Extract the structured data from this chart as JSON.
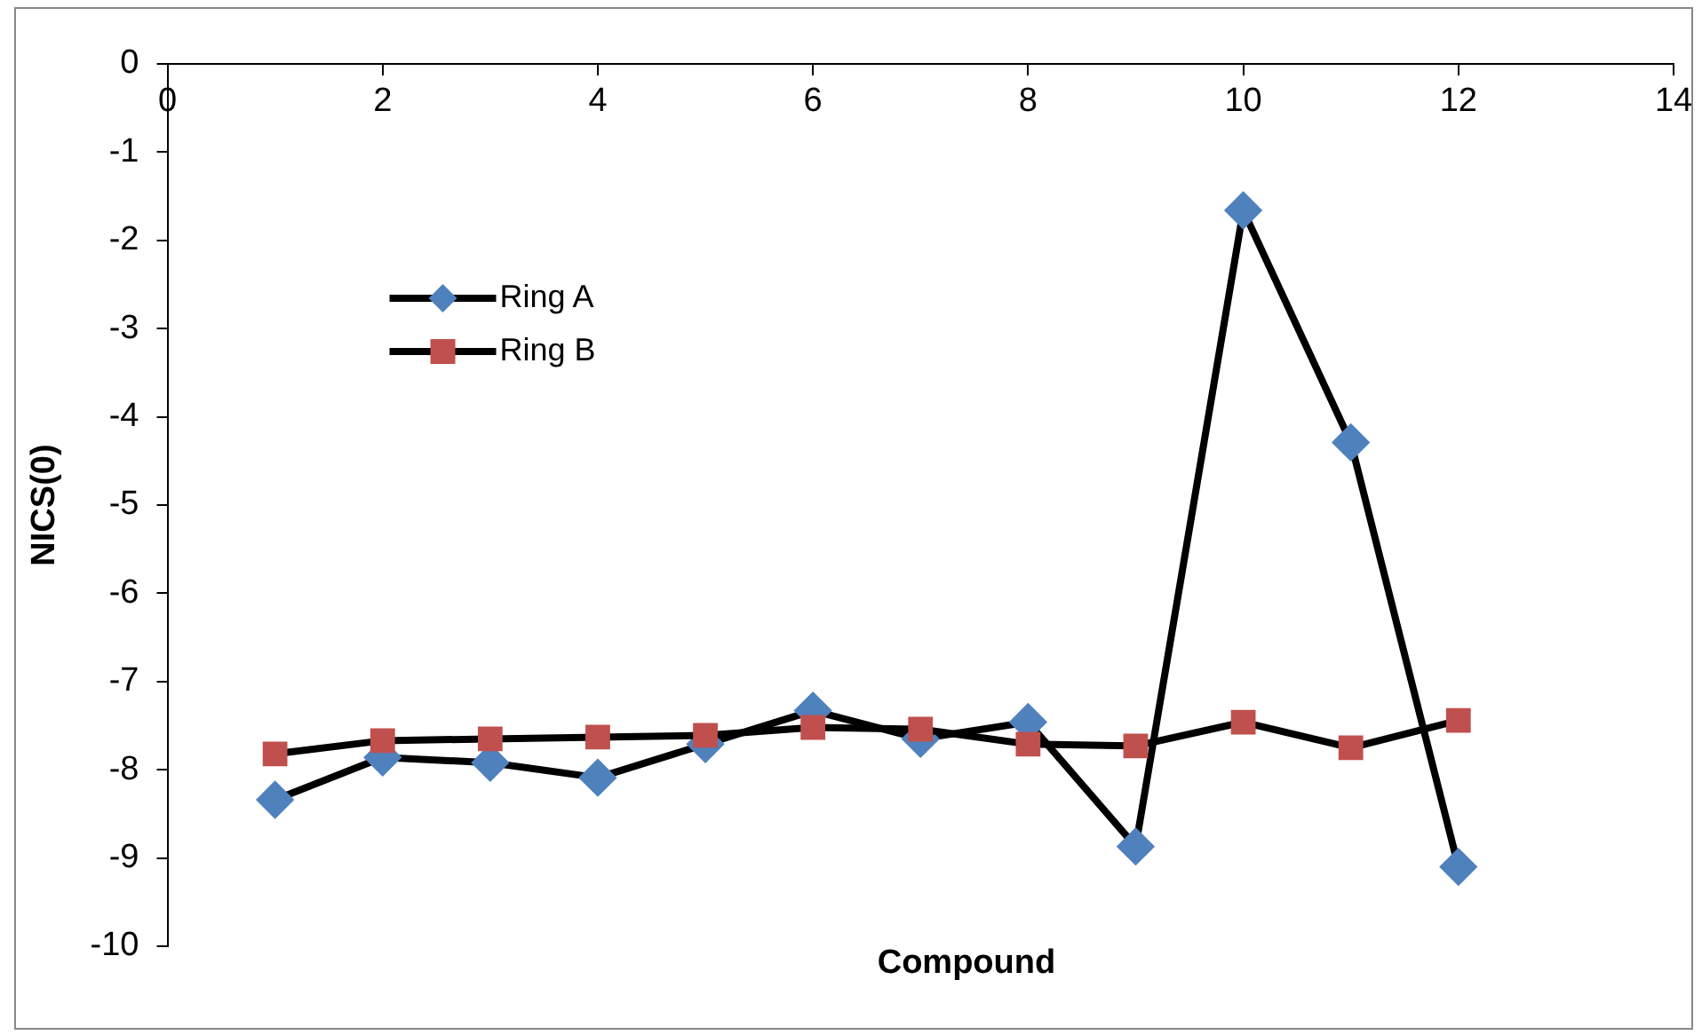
{
  "chart_data": {
    "type": "line",
    "xlabel": "Compound",
    "ylabel": "NICS(0)",
    "x": [
      1,
      2,
      3,
      4,
      5,
      6,
      7,
      8,
      9,
      10,
      11,
      12
    ],
    "series": [
      {
        "name": "Ring A",
        "color": "#4f81bd",
        "marker": "diamond",
        "values": [
          -8.34,
          -7.86,
          -7.92,
          -8.09,
          -7.71,
          -7.33,
          -7.65,
          -7.46,
          -8.87,
          -1.66,
          -4.29,
          -9.1
        ]
      },
      {
        "name": "Ring B",
        "color": "#c0504d",
        "marker": "square",
        "values": [
          -7.82,
          -7.67,
          -7.65,
          -7.63,
          -7.61,
          -7.52,
          -7.54,
          -7.71,
          -7.73,
          -7.46,
          -7.75,
          -7.44
        ]
      }
    ],
    "xlim": [
      0,
      14
    ],
    "xticks": [
      0,
      2,
      4,
      6,
      8,
      10,
      12,
      14
    ],
    "ylim": [
      -10,
      0
    ],
    "yticks": [
      -10,
      -9,
      -8,
      -7,
      -6,
      -5,
      -4,
      -3,
      -2,
      -1,
      0
    ],
    "grid": false,
    "legend": "top left",
    "line_style": "solid"
  }
}
